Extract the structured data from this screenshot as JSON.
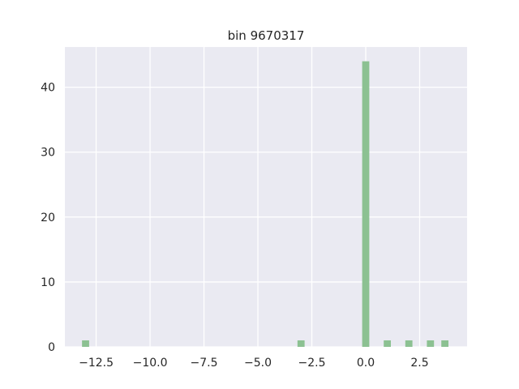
{
  "chart_data": {
    "type": "bar",
    "title": "bin 9670317",
    "xlabel": "",
    "ylabel": "",
    "xlim": [
      -13.95,
      4.7
    ],
    "ylim": [
      0,
      46.2
    ],
    "grid": true,
    "x_ticks": [
      -12.5,
      -10.0,
      -7.5,
      -5.0,
      -2.5,
      0.0,
      2.5
    ],
    "x_tick_labels": [
      "−12.5",
      "−10.0",
      "−7.5",
      "−5.0",
      "−2.5",
      "0.0",
      "2.5"
    ],
    "y_ticks": [
      0,
      10,
      20,
      30,
      40
    ],
    "y_tick_labels": [
      "0",
      "10",
      "20",
      "30",
      "40"
    ],
    "bin_width": 0.33,
    "bars": [
      {
        "x": -12.99,
        "value": 1
      },
      {
        "x": -3.0,
        "value": 1
      },
      {
        "x": 0.0,
        "value": 44
      },
      {
        "x": 1.0,
        "value": 1
      },
      {
        "x": 2.0,
        "value": 1
      },
      {
        "x": 3.0,
        "value": 1
      },
      {
        "x": 3.67,
        "value": 1
      }
    ],
    "colors": {
      "bar": "#8cc192",
      "background": "#eaeaf2",
      "grid": "#ffffff"
    }
  }
}
